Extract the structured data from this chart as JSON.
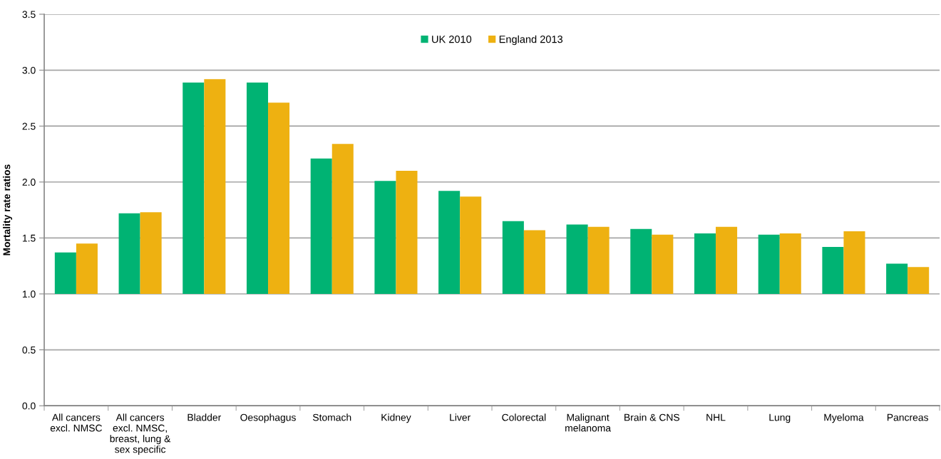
{
  "chart_data": {
    "type": "bar",
    "ylabel": "Mortality rate ratios",
    "categories": [
      "All cancers\nexcl. NMSC",
      "All cancers\nexcl. NMSC,\nbreast, lung &\nsex specific",
      "Bladder",
      "Oesophagus",
      "Stomach",
      "Kidney",
      "Liver",
      "Colorectal",
      "Malignant\nmelanoma",
      "Brain & CNS",
      "NHL",
      "Lung",
      "Myeloma",
      "Pancreas"
    ],
    "series": [
      {
        "name": "UK 2010",
        "color": "#00b373",
        "base": [
          1.0,
          1.0,
          1.0,
          1.0,
          1.0,
          1.0,
          1.0,
          1.0,
          1.0,
          1.0,
          1.0,
          1.0,
          1.0,
          1.0
        ],
        "values": [
          0.37,
          0.72,
          1.89,
          1.89,
          1.21,
          1.01,
          0.92,
          0.65,
          0.62,
          0.58,
          0.54,
          0.53,
          0.42,
          0.27
        ]
      },
      {
        "name": "England 2013",
        "color": "#eeb111",
        "base": [
          1.0,
          1.0,
          1.0,
          1.0,
          1.0,
          1.0,
          1.0,
          1.0,
          1.0,
          1.0,
          1.0,
          1.0,
          1.0,
          1.0
        ],
        "values": [
          0.45,
          0.73,
          1.92,
          1.71,
          1.34,
          1.1,
          0.87,
          0.57,
          0.6,
          0.53,
          0.6,
          0.54,
          0.56,
          0.24
        ]
      }
    ],
    "ylim": [
      0,
      3.5
    ],
    "yticks": [
      {
        "value": 0,
        "label": "0.0"
      },
      0.5,
      {
        "value": 1,
        "label": "1.0"
      },
      1.5,
      {
        "value": 2,
        "label": "2.0"
      },
      2.5,
      {
        "value": 3,
        "label": "3.0"
      },
      3.5
    ],
    "grid": "y",
    "legend": "top"
  }
}
